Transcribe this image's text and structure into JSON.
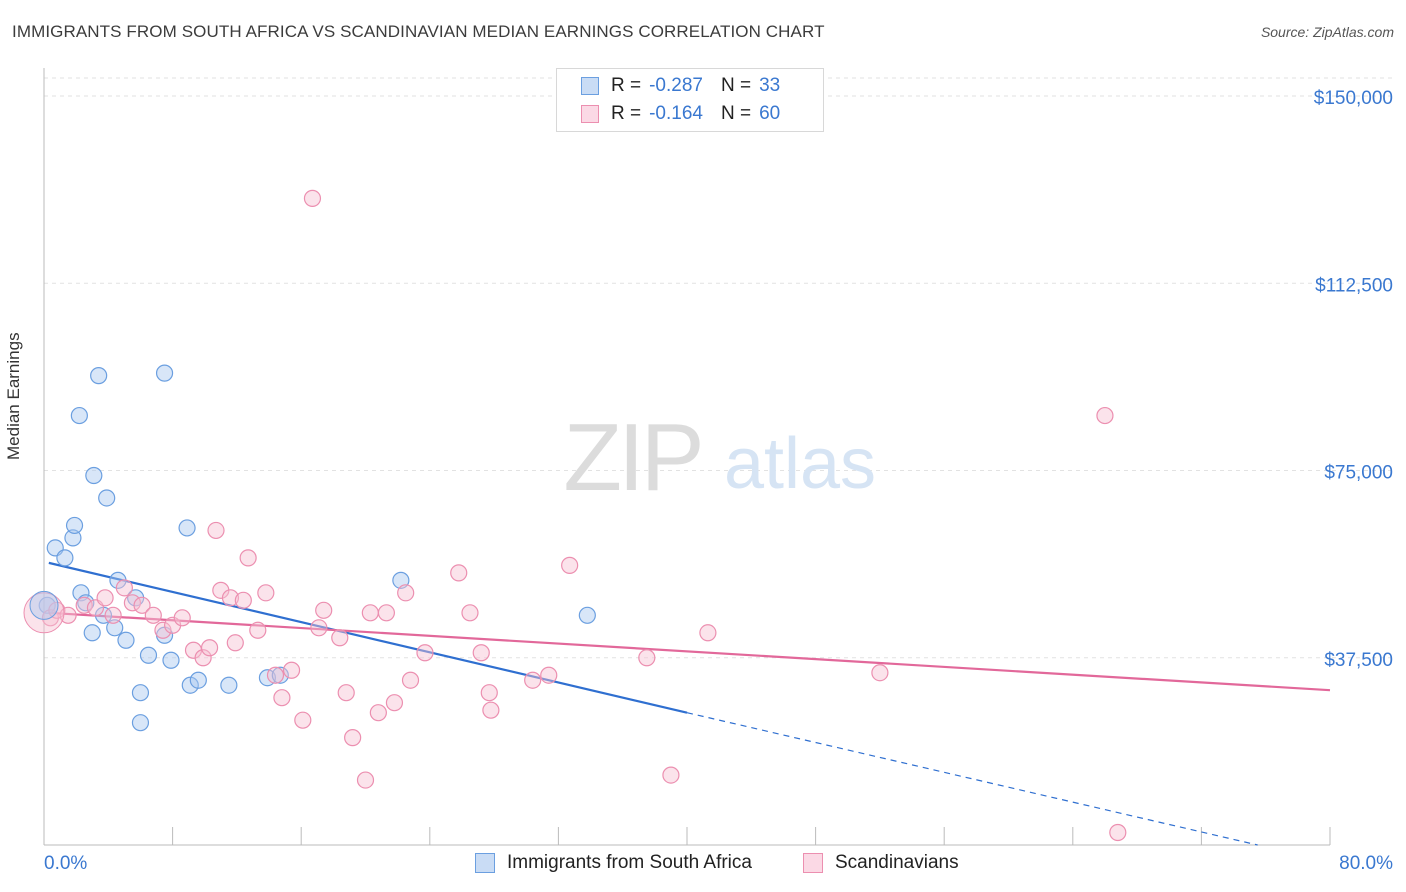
{
  "title": "IMMIGRANTS FROM SOUTH AFRICA VS SCANDINAVIAN MEDIAN EARNINGS CORRELATION CHART",
  "source": "Source: ZipAtlas.com",
  "watermark": {
    "zip": "ZIP",
    "atlas": "atlas"
  },
  "legend": {
    "rows": [
      {
        "r_label": "R =",
        "r_value": "-0.287",
        "n_label": "N =",
        "n_value": "33",
        "color": "#a9c8f0",
        "stroke": "#6b9fe0"
      },
      {
        "r_label": "R =",
        "r_value": "-0.164",
        "n_label": "N =",
        "n_value": "60",
        "color": "#f6c0d2",
        "stroke": "#ec8fb0"
      }
    ]
  },
  "bottom_legend": [
    {
      "label": "Immigrants from South Africa",
      "color": "#a9c8f0",
      "stroke": "#6b9fe0"
    },
    {
      "label": "Scandinavians",
      "color": "#f6c0d2",
      "stroke": "#ec8fb0"
    }
  ],
  "chart_data": {
    "type": "scatter",
    "title": "IMMIGRANTS FROM SOUTH AFRICA VS SCANDINAVIAN MEDIAN EARNINGS CORRELATION CHART",
    "xlabel": "",
    "ylabel": "Median Earnings",
    "xlim": [
      0,
      80
    ],
    "ylim": [
      0,
      150000
    ],
    "x_tick_labels": [
      "0.0%",
      "80.0%"
    ],
    "y_ticks": [
      37500,
      75000,
      112500,
      150000
    ],
    "y_tick_labels": [
      "$37,500",
      "$75,000",
      "$112,500",
      "$150,000"
    ],
    "grid": true,
    "legend_position": "top-center",
    "series": [
      {
        "name": "Immigrants from South Africa",
        "color": "#6b9fe0",
        "fill": "#a9c8f0",
        "trend": {
          "x0": 0.3,
          "y0": 56500,
          "x1": 40,
          "y1": 26500,
          "dash_to_x": 75.5,
          "dash_to_y": 0
        },
        "points": [
          [
            0.2,
            48000
          ],
          [
            0.7,
            59500
          ],
          [
            1.3,
            57500
          ],
          [
            1.8,
            61500
          ],
          [
            1.9,
            64000
          ],
          [
            2.2,
            86000
          ],
          [
            2.3,
            50500
          ],
          [
            2.6,
            48500
          ],
          [
            3.0,
            42500
          ],
          [
            3.1,
            74000
          ],
          [
            3.4,
            94000
          ],
          [
            3.7,
            46000
          ],
          [
            3.9,
            69500
          ],
          [
            4.4,
            43500
          ],
          [
            4.6,
            53000
          ],
          [
            5.1,
            41000
          ],
          [
            5.7,
            49500
          ],
          [
            6.0,
            30500
          ],
          [
            6.0,
            24500
          ],
          [
            6.5,
            38000
          ],
          [
            7.5,
            42000
          ],
          [
            7.5,
            94500
          ],
          [
            7.9,
            37000
          ],
          [
            8.9,
            63500
          ],
          [
            9.1,
            32000
          ],
          [
            9.6,
            33000
          ],
          [
            11.5,
            32000
          ],
          [
            13.9,
            33500
          ],
          [
            14.7,
            34000
          ],
          [
            22.2,
            53000
          ],
          [
            33.8,
            46000
          ]
        ]
      },
      {
        "name": "Scandinavians",
        "color": "#ec8fb0",
        "fill": "#f6c0d2",
        "trend": {
          "x0": 0.3,
          "y0": 46500,
          "x1": 80,
          "y1": 31000
        },
        "points": [
          [
            0.4,
            45500
          ],
          [
            0.8,
            47000
          ],
          [
            1.5,
            46000
          ],
          [
            2.5,
            48000
          ],
          [
            3.2,
            47500
          ],
          [
            3.8,
            49500
          ],
          [
            4.3,
            46000
          ],
          [
            5.0,
            51500
          ],
          [
            5.5,
            48500
          ],
          [
            6.1,
            48000
          ],
          [
            6.8,
            46000
          ],
          [
            7.4,
            43000
          ],
          [
            8.0,
            44000
          ],
          [
            8.6,
            45500
          ],
          [
            9.3,
            39000
          ],
          [
            9.9,
            37500
          ],
          [
            10.3,
            39500
          ],
          [
            10.7,
            63000
          ],
          [
            11.0,
            51000
          ],
          [
            11.6,
            49500
          ],
          [
            11.9,
            40500
          ],
          [
            12.4,
            49000
          ],
          [
            12.7,
            57500
          ],
          [
            13.3,
            43000
          ],
          [
            13.8,
            50500
          ],
          [
            14.4,
            34000
          ],
          [
            14.8,
            29500
          ],
          [
            15.4,
            35000
          ],
          [
            16.1,
            25000
          ],
          [
            16.7,
            129500
          ],
          [
            17.1,
            43500
          ],
          [
            17.4,
            47000
          ],
          [
            18.4,
            41500
          ],
          [
            18.8,
            30500
          ],
          [
            19.2,
            21500
          ],
          [
            20.0,
            13000
          ],
          [
            20.3,
            46500
          ],
          [
            20.8,
            26500
          ],
          [
            21.3,
            46500
          ],
          [
            21.8,
            28500
          ],
          [
            22.5,
            50500
          ],
          [
            22.8,
            33000
          ],
          [
            23.7,
            38500
          ],
          [
            25.8,
            54500
          ],
          [
            26.5,
            46500
          ],
          [
            27.2,
            38500
          ],
          [
            27.7,
            30500
          ],
          [
            27.8,
            27000
          ],
          [
            30.4,
            33000
          ],
          [
            31.4,
            34000
          ],
          [
            32.7,
            56000
          ],
          [
            37.5,
            37500
          ],
          [
            39.0,
            14000
          ],
          [
            41.3,
            42500
          ],
          [
            52.0,
            34500
          ],
          [
            66.0,
            86000
          ],
          [
            66.8,
            2500
          ]
        ]
      }
    ]
  }
}
